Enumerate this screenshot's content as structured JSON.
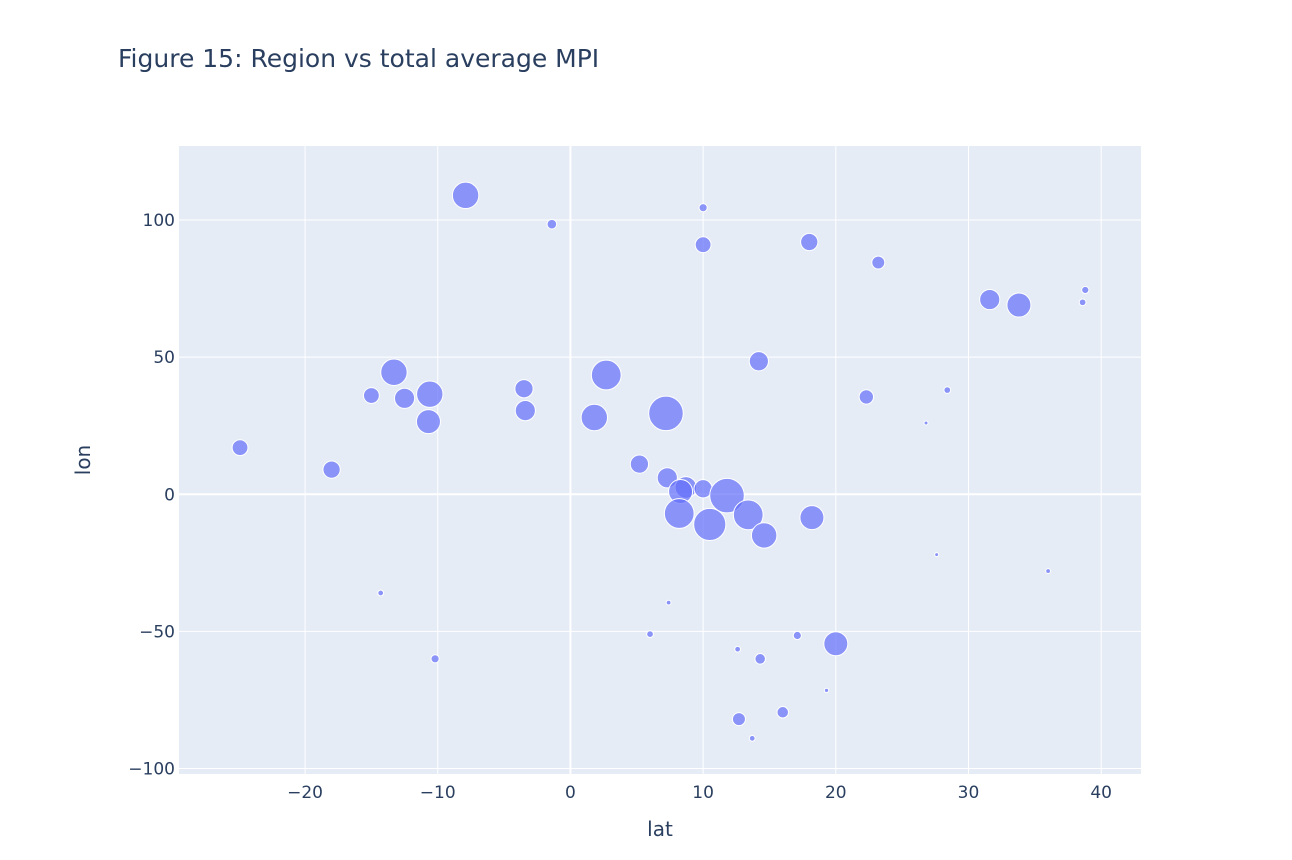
{
  "chart_data": {
    "type": "scatter",
    "title": "Figure 15: Region vs total average MPI",
    "xlabel": "lat",
    "ylabel": "lon",
    "xlim": [
      -29.5,
      43
    ],
    "ylim": [
      -102,
      127
    ],
    "xticks": [
      -20,
      -10,
      0,
      10,
      20,
      30,
      40
    ],
    "yticks": [
      -100,
      -50,
      0,
      50,
      100
    ],
    "xtick_labels": [
      "−20",
      "−10",
      "0",
      "10",
      "20",
      "30",
      "40"
    ],
    "ytick_labels": [
      "−100",
      "−50",
      "0",
      "50",
      "100"
    ],
    "grid": true,
    "marker_color": "#636efa",
    "marker_opacity": 0.7,
    "plot_bgcolor": "#e5ecf6",
    "series": [
      {
        "marker": "bubble",
        "points": [
          {
            "x": -7.9,
            "y": 109,
            "size": 0.55
          },
          {
            "x": -1.4,
            "y": 98.5,
            "size": 0.2
          },
          {
            "x": 10.0,
            "y": 104.5,
            "size": 0.17
          },
          {
            "x": 10.0,
            "y": 91,
            "size": 0.33
          },
          {
            "x": 18.0,
            "y": 92,
            "size": 0.36
          },
          {
            "x": 23.2,
            "y": 84.5,
            "size": 0.27
          },
          {
            "x": 31.6,
            "y": 71,
            "size": 0.42
          },
          {
            "x": 33.8,
            "y": 69,
            "size": 0.5
          },
          {
            "x": 38.8,
            "y": 74.5,
            "size": 0.15
          },
          {
            "x": 38.6,
            "y": 70,
            "size": 0.14
          },
          {
            "x": 14.2,
            "y": 48.5,
            "size": 0.4
          },
          {
            "x": 28.4,
            "y": 38,
            "size": 0.14
          },
          {
            "x": 22.3,
            "y": 35.5,
            "size": 0.3
          },
          {
            "x": 26.8,
            "y": 26,
            "size": 0.06
          },
          {
            "x": -24.9,
            "y": 17,
            "size": 0.33
          },
          {
            "x": -18.0,
            "y": 9,
            "size": 0.36
          },
          {
            "x": -15.0,
            "y": 36,
            "size": 0.33
          },
          {
            "x": -13.3,
            "y": 44.5,
            "size": 0.55
          },
          {
            "x": -12.5,
            "y": 35,
            "size": 0.42
          },
          {
            "x": -10.6,
            "y": 36.5,
            "size": 0.55
          },
          {
            "x": -10.7,
            "y": 26.5,
            "size": 0.5
          },
          {
            "x": -3.5,
            "y": 38.5,
            "size": 0.38
          },
          {
            "x": -3.4,
            "y": 30.5,
            "size": 0.42
          },
          {
            "x": 1.8,
            "y": 28,
            "size": 0.55
          },
          {
            "x": 2.7,
            "y": 43.5,
            "size": 0.62
          },
          {
            "x": 7.2,
            "y": 29.5,
            "size": 0.72
          },
          {
            "x": 5.2,
            "y": 11,
            "size": 0.38
          },
          {
            "x": 7.3,
            "y": 6,
            "size": 0.42
          },
          {
            "x": 8.7,
            "y": 2.5,
            "size": 0.45
          },
          {
            "x": 8.3,
            "y": 1,
            "size": 0.5
          },
          {
            "x": 10.0,
            "y": 2,
            "size": 0.38
          },
          {
            "x": 11.8,
            "y": -0.5,
            "size": 0.72
          },
          {
            "x": 8.2,
            "y": -7,
            "size": 0.62
          },
          {
            "x": 10.5,
            "y": -11,
            "size": 0.67
          },
          {
            "x": 13.4,
            "y": -7.5,
            "size": 0.62
          },
          {
            "x": 14.6,
            "y": -15,
            "size": 0.53
          },
          {
            "x": 18.2,
            "y": -8.5,
            "size": 0.5
          },
          {
            "x": 27.6,
            "y": -22,
            "size": 0.04
          },
          {
            "x": 36.0,
            "y": -28,
            "size": 0.1
          },
          {
            "x": -14.3,
            "y": -36,
            "size": 0.12
          },
          {
            "x": -10.2,
            "y": -60,
            "size": 0.17
          },
          {
            "x": 7.4,
            "y": -39.5,
            "size": 0.1
          },
          {
            "x": 6.0,
            "y": -51,
            "size": 0.14
          },
          {
            "x": 17.1,
            "y": -51.5,
            "size": 0.17
          },
          {
            "x": 20.0,
            "y": -54.5,
            "size": 0.5
          },
          {
            "x": 12.6,
            "y": -56.5,
            "size": 0.12
          },
          {
            "x": 14.3,
            "y": -60,
            "size": 0.22
          },
          {
            "x": 19.3,
            "y": -71.5,
            "size": 0.09
          },
          {
            "x": 16.0,
            "y": -79.5,
            "size": 0.24
          },
          {
            "x": 12.7,
            "y": -82,
            "size": 0.27
          },
          {
            "x": 13.7,
            "y": -89,
            "size": 0.12
          }
        ]
      }
    ]
  }
}
